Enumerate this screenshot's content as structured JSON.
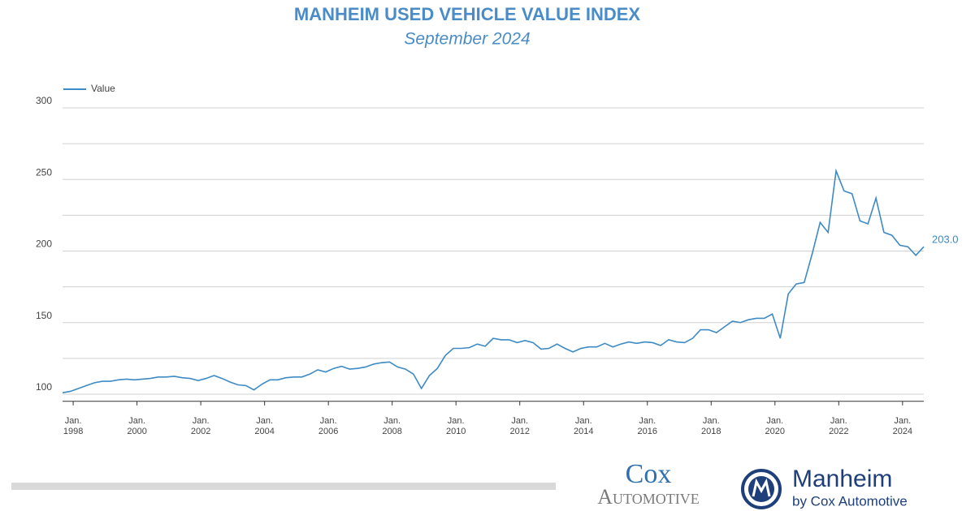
{
  "chart_data": {
    "type": "line",
    "title": "MANHEIM USED VEHICLE VALUE INDEX",
    "subtitle": "September 2024",
    "x": [
      "1997-09",
      "1997-12",
      "1998-03",
      "1998-06",
      "1998-09",
      "1998-12",
      "1999-03",
      "1999-06",
      "1999-09",
      "1999-12",
      "2000-03",
      "2000-06",
      "2000-09",
      "2000-12",
      "2001-03",
      "2001-06",
      "2001-09",
      "2001-12",
      "2002-03",
      "2002-06",
      "2002-09",
      "2002-12",
      "2003-03",
      "2003-06",
      "2003-09",
      "2003-12",
      "2004-03",
      "2004-06",
      "2004-09",
      "2004-12",
      "2005-03",
      "2005-06",
      "2005-09",
      "2005-12",
      "2006-03",
      "2006-06",
      "2006-09",
      "2006-12",
      "2007-03",
      "2007-06",
      "2007-09",
      "2007-12",
      "2008-03",
      "2008-06",
      "2008-09",
      "2008-12",
      "2009-03",
      "2009-06",
      "2009-09",
      "2009-12",
      "2010-03",
      "2010-06",
      "2010-09",
      "2010-12",
      "2011-03",
      "2011-06",
      "2011-09",
      "2011-12",
      "2012-03",
      "2012-06",
      "2012-09",
      "2012-12",
      "2013-03",
      "2013-06",
      "2013-09",
      "2013-12",
      "2014-03",
      "2014-06",
      "2014-09",
      "2014-12",
      "2015-03",
      "2015-06",
      "2015-09",
      "2015-12",
      "2016-03",
      "2016-06",
      "2016-09",
      "2016-12",
      "2017-03",
      "2017-06",
      "2017-09",
      "2017-12",
      "2018-03",
      "2018-06",
      "2018-09",
      "2018-12",
      "2019-03",
      "2019-06",
      "2019-09",
      "2019-12",
      "2020-03",
      "2020-06",
      "2020-09",
      "2020-12",
      "2021-03",
      "2021-06",
      "2021-09",
      "2021-12",
      "2022-03",
      "2022-06",
      "2022-09",
      "2022-12",
      "2023-03",
      "2023-06",
      "2023-09",
      "2023-12",
      "2024-03",
      "2024-06",
      "2024-09"
    ],
    "series": [
      {
        "name": "Value",
        "color": "#3d8ac4",
        "values": [
          101,
          102,
          104,
          106,
          108,
          109,
          109,
          110,
          110.5,
          110,
          110.5,
          111,
          112,
          112,
          112.5,
          111.5,
          111,
          109.5,
          111,
          113,
          111,
          108.5,
          106.5,
          106,
          103,
          107,
          110,
          110,
          111.5,
          112,
          112,
          114,
          117,
          115.5,
          118,
          119.5,
          117.5,
          118,
          119,
          121,
          122,
          122.5,
          119,
          117.5,
          114,
          104,
          113,
          118,
          127,
          132,
          132,
          132.5,
          135,
          133.5,
          139,
          138,
          138,
          136,
          137.5,
          136,
          131.5,
          132,
          135,
          132,
          129.5,
          132,
          133,
          133,
          135.5,
          133,
          135,
          136.5,
          135.5,
          136.5,
          136,
          134,
          138,
          136.5,
          136,
          139,
          145,
          145,
          143,
          147,
          151,
          150,
          152,
          153,
          153,
          156,
          139,
          170,
          177,
          178,
          198,
          220,
          213,
          256,
          242,
          240,
          221,
          219,
          237,
          213,
          211,
          204,
          203,
          197,
          203
        ],
        "value_labels": [
          null,
          null,
          null,
          null,
          null,
          null,
          null,
          null,
          null,
          null,
          null,
          null,
          null,
          null,
          null,
          null,
          null,
          null,
          null,
          null,
          null,
          null,
          null,
          null,
          null,
          null,
          null,
          null,
          null,
          null,
          null,
          null,
          null,
          null,
          null,
          null,
          null,
          null,
          null,
          null,
          null,
          null,
          null,
          null,
          null,
          null,
          null,
          null,
          null,
          null,
          null,
          null,
          null,
          null,
          null,
          null,
          null,
          null,
          null,
          null,
          null,
          null,
          null,
          null,
          null,
          null,
          null,
          null,
          null,
          null,
          null,
          null,
          null,
          null,
          null,
          null,
          null,
          null,
          null,
          null,
          null,
          null,
          null,
          null,
          null,
          null,
          null,
          null,
          null,
          null,
          null,
          null,
          null,
          null,
          null,
          null,
          null,
          null,
          null,
          null,
          null,
          null,
          null,
          null,
          null,
          null,
          null,
          null,
          "203.0"
        ]
      }
    ],
    "xlim": [
      "1997-09",
      "2024-09"
    ],
    "xticks": [
      {
        "value": "1998-01",
        "label": "Jan. 1998"
      },
      {
        "value": "2000-01",
        "label": "Jan. 2000"
      },
      {
        "value": "2002-01",
        "label": "Jan. 2002"
      },
      {
        "value": "2004-01",
        "label": "Jan. 2004"
      },
      {
        "value": "2006-01",
        "label": "Jan. 2006"
      },
      {
        "value": "2008-01",
        "label": "Jan. 2008"
      },
      {
        "value": "2010-01",
        "label": "Jan. 2010"
      },
      {
        "value": "2012-01",
        "label": "Jan. 2012"
      },
      {
        "value": "2014-01",
        "label": "Jan. 2014"
      },
      {
        "value": "2016-01",
        "label": "Jan. 2016"
      },
      {
        "value": "2018-01",
        "label": "Jan. 2018"
      },
      {
        "value": "2020-01",
        "label": "Jan. 2020"
      },
      {
        "value": "2022-01",
        "label": "Jan. 2022"
      },
      {
        "value": "2024-01",
        "label": "Jan. 2024"
      }
    ],
    "ylim": [
      95,
      300
    ],
    "yticks": [
      100,
      150,
      200,
      250,
      300
    ],
    "minor_yticks": [
      125,
      175,
      225,
      275
    ],
    "grid": true,
    "legend": "top-left"
  },
  "footer": {
    "brand1_line1": "Cox",
    "brand1_line2": "Automotive",
    "brand2": "Manheim",
    "brand2_sub": "by Cox Automotive"
  }
}
